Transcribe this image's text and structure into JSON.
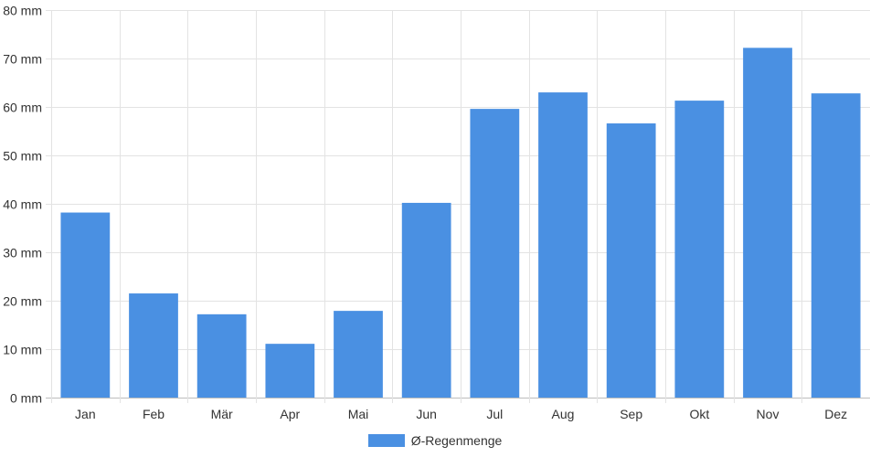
{
  "chart_data": {
    "type": "bar",
    "categories": [
      "Jan",
      "Feb",
      "Mär",
      "Apr",
      "Mai",
      "Jun",
      "Jul",
      "Aug",
      "Sep",
      "Okt",
      "Nov",
      "Dez"
    ],
    "series": [
      {
        "name": "Ø-Regenmenge",
        "values": [
          38.2,
          21.5,
          17.2,
          11.1,
          17.9,
          40.2,
          59.6,
          63.0,
          56.6,
          61.3,
          72.2,
          62.8
        ],
        "color": "#4a90e2"
      }
    ],
    "y_unit": "mm",
    "ylim": [
      0,
      80
    ],
    "yticks": [
      0,
      10,
      20,
      30,
      40,
      50,
      60,
      70,
      80
    ],
    "ytick_labels": [
      "0 mm",
      "10 mm",
      "20 mm",
      "30 mm",
      "40 mm",
      "50 mm",
      "60 mm",
      "70 mm",
      "80 mm"
    ],
    "grid": true,
    "legend_position": "bottom-center"
  }
}
